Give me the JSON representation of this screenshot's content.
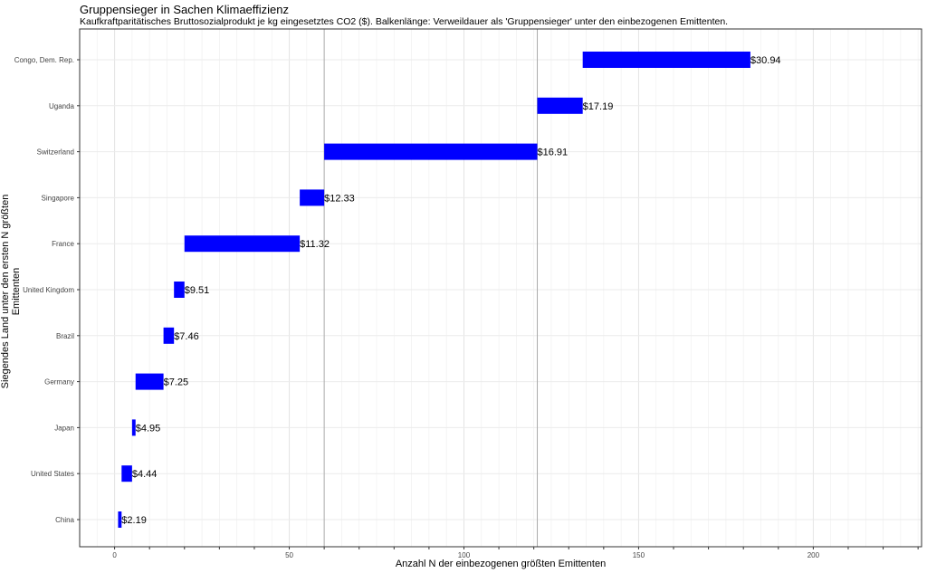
{
  "chart_data": {
    "type": "bar",
    "orientation": "horizontal-range",
    "title": "Gruppensieger in Sachen Klimaeffizienz",
    "subtitle": "Kaufkraftparitätisches Bruttosozialprodukt je kg eingesetztes CO2 ($). Balkenlänge: Verweildauer als 'Gruppensieger' unter den einbezogenen Emittenten.",
    "xlabel": "Anzahl N der einbezogenen größten Emittenten",
    "ylabel": "Siegendes Land unter den ersten N größten Emittenten",
    "xlim": [
      -10,
      231
    ],
    "xticks": [
      0,
      50,
      100,
      150,
      200
    ],
    "vlines": [
      60,
      121
    ],
    "bar_color": "#0000FF",
    "categories": [
      "Congo, Dem. Rep.",
      "Uganda",
      "Switzerland",
      "Singapore",
      "France",
      "United Kingdom",
      "Brazil",
      "Germany",
      "Japan",
      "United States",
      "China"
    ],
    "start": [
      134,
      121,
      60,
      53,
      20,
      17,
      14,
      6,
      5,
      2,
      1
    ],
    "end": [
      182,
      134,
      121,
      60,
      53,
      20,
      17,
      14,
      6,
      5,
      2
    ],
    "labels": [
      "$30.94",
      "$17.19",
      "$16.91",
      "$12.33",
      "$11.32",
      "$9.51",
      "$7.46",
      "$7.25",
      "$4.95",
      "$4.44",
      "$2.19"
    ]
  }
}
